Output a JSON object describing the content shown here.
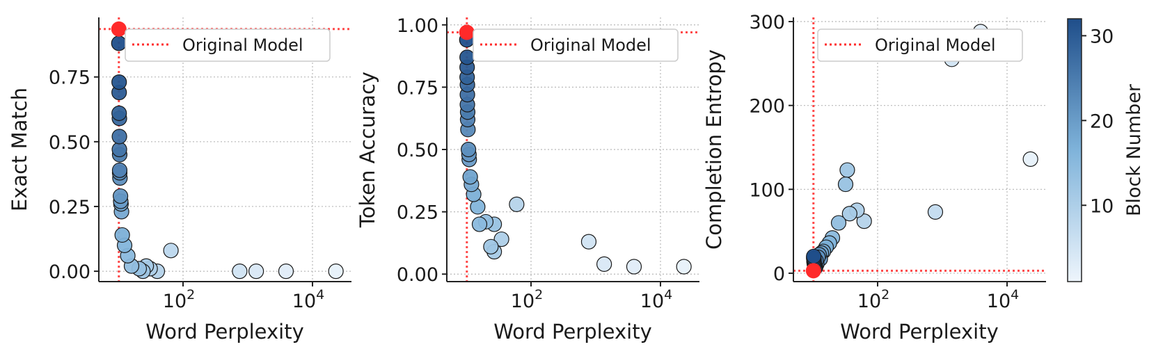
{
  "colors": {
    "reference": "#ff2a2a",
    "colormap_low": "#eef5fc",
    "colormap_high": "#1f4e8a",
    "grid": "#b8b8b8",
    "axis": "#222222"
  },
  "colorbar": {
    "label": "Block Number",
    "min": 1,
    "max": 32,
    "ticks": [
      {
        "value": 10,
        "label": "10"
      },
      {
        "value": 20,
        "label": "20"
      },
      {
        "value": 30,
        "label": "30"
      }
    ]
  },
  "chart_data": [
    {
      "type": "scatter",
      "xlabel": "Word Perplexity",
      "ylabel": "Exact Match",
      "xscale": "log",
      "xlim": [
        5,
        40000
      ],
      "ylim": [
        -0.04,
        0.98
      ],
      "x_ticks": [
        {
          "value": 100,
          "base": "10",
          "exp": "2"
        },
        {
          "value": 10000,
          "base": "10",
          "exp": "4"
        }
      ],
      "y_ticks": [
        {
          "value": 0.0,
          "label": "0.00"
        },
        {
          "value": 0.25,
          "label": "0.25"
        },
        {
          "value": 0.5,
          "label": "0.50"
        },
        {
          "value": 0.75,
          "label": "0.75"
        }
      ],
      "grid": true,
      "legend": {
        "label": "Original Model",
        "position": "top"
      },
      "reference": {
        "x": 10.2,
        "y": 0.935
      },
      "points": [
        {
          "x": 10.2,
          "y": 0.88,
          "block": 32
        },
        {
          "x": 10.3,
          "y": 0.73,
          "block": 31
        },
        {
          "x": 10.3,
          "y": 0.69,
          "block": 30
        },
        {
          "x": 10.3,
          "y": 0.61,
          "block": 29
        },
        {
          "x": 10.4,
          "y": 0.59,
          "block": 28
        },
        {
          "x": 10.4,
          "y": 0.52,
          "block": 27
        },
        {
          "x": 10.4,
          "y": 0.47,
          "block": 26
        },
        {
          "x": 10.5,
          "y": 0.45,
          "block": 25
        },
        {
          "x": 10.5,
          "y": 0.39,
          "block": 24
        },
        {
          "x": 10.5,
          "y": 0.38,
          "block": 23
        },
        {
          "x": 10.6,
          "y": 0.36,
          "block": 22
        },
        {
          "x": 10.8,
          "y": 0.29,
          "block": 21
        },
        {
          "x": 10.9,
          "y": 0.27,
          "block": 20
        },
        {
          "x": 11.0,
          "y": 0.26,
          "block": 19
        },
        {
          "x": 11.2,
          "y": 0.23,
          "block": 18
        },
        {
          "x": 11.5,
          "y": 0.14,
          "block": 17
        },
        {
          "x": 12.5,
          "y": 0.1,
          "block": 16
        },
        {
          "x": 14.0,
          "y": 0.06,
          "block": 15
        },
        {
          "x": 16.0,
          "y": 0.02,
          "block": 14
        },
        {
          "x": 21.0,
          "y": 0.01,
          "block": 13
        },
        {
          "x": 24.0,
          "y": 0.0,
          "block": 12
        },
        {
          "x": 27.0,
          "y": 0.02,
          "block": 11
        },
        {
          "x": 31.0,
          "y": 0.01,
          "block": 10
        },
        {
          "x": 40.0,
          "y": 0.0,
          "block": 9
        },
        {
          "x": 65.0,
          "y": 0.08,
          "block": 8
        },
        {
          "x": 750.0,
          "y": 0.0,
          "block": 5
        },
        {
          "x": 1350.0,
          "y": 0.0,
          "block": 4
        },
        {
          "x": 3900.0,
          "y": 0.0,
          "block": 3
        },
        {
          "x": 23000.0,
          "y": 0.0,
          "block": 2
        }
      ]
    },
    {
      "type": "scatter",
      "xlabel": "Word Perplexity",
      "ylabel": "Token Accuracy",
      "xscale": "log",
      "xlim": [
        5,
        40000
      ],
      "ylim": [
        -0.03,
        1.03
      ],
      "x_ticks": [
        {
          "value": 100,
          "base": "10",
          "exp": "2"
        },
        {
          "value": 10000,
          "base": "10",
          "exp": "4"
        }
      ],
      "y_ticks": [
        {
          "value": 0.0,
          "label": "0.00"
        },
        {
          "value": 0.25,
          "label": "0.25"
        },
        {
          "value": 0.5,
          "label": "0.50"
        },
        {
          "value": 0.75,
          "label": "0.75"
        },
        {
          "value": 1.0,
          "label": "1.00"
        }
      ],
      "grid": true,
      "legend": {
        "label": "Original Model",
        "position": "top"
      },
      "reference": {
        "x": 10.2,
        "y": 0.97
      },
      "points": [
        {
          "x": 10.2,
          "y": 0.94,
          "block": 32
        },
        {
          "x": 10.3,
          "y": 0.87,
          "block": 31
        },
        {
          "x": 10.3,
          "y": 0.83,
          "block": 30
        },
        {
          "x": 10.3,
          "y": 0.79,
          "block": 29
        },
        {
          "x": 10.4,
          "y": 0.76,
          "block": 28
        },
        {
          "x": 10.4,
          "y": 0.72,
          "block": 27
        },
        {
          "x": 10.4,
          "y": 0.68,
          "block": 26
        },
        {
          "x": 10.5,
          "y": 0.65,
          "block": 25
        },
        {
          "x": 10.5,
          "y": 0.62,
          "block": 24
        },
        {
          "x": 10.6,
          "y": 0.58,
          "block": 23
        },
        {
          "x": 10.8,
          "y": 0.5,
          "block": 22
        },
        {
          "x": 11.0,
          "y": 0.48,
          "block": 21
        },
        {
          "x": 11.1,
          "y": 0.46,
          "block": 20
        },
        {
          "x": 11.5,
          "y": 0.39,
          "block": 19
        },
        {
          "x": 12.0,
          "y": 0.36,
          "block": 18
        },
        {
          "x": 13.0,
          "y": 0.32,
          "block": 17
        },
        {
          "x": 15.0,
          "y": 0.27,
          "block": 16
        },
        {
          "x": 16.0,
          "y": 0.2,
          "block": 15
        },
        {
          "x": 20.0,
          "y": 0.21,
          "block": 14
        },
        {
          "x": 27.0,
          "y": 0.2,
          "block": 13
        },
        {
          "x": 24.0,
          "y": 0.11,
          "block": 12
        },
        {
          "x": 27.0,
          "y": 0.09,
          "block": 11
        },
        {
          "x": 35.0,
          "y": 0.14,
          "block": 10
        },
        {
          "x": 60.0,
          "y": 0.28,
          "block": 9
        },
        {
          "x": 780.0,
          "y": 0.13,
          "block": 5
        },
        {
          "x": 1350.0,
          "y": 0.04,
          "block": 4
        },
        {
          "x": 3900.0,
          "y": 0.03,
          "block": 3
        },
        {
          "x": 23000.0,
          "y": 0.03,
          "block": 2
        }
      ]
    },
    {
      "type": "scatter",
      "xlabel": "Word Perplexity",
      "ylabel": "Completion Entropy",
      "xscale": "log",
      "xlim": [
        5,
        40000
      ],
      "ylim": [
        -10,
        305
      ],
      "x_ticks": [
        {
          "value": 100,
          "base": "10",
          "exp": "2"
        },
        {
          "value": 10000,
          "base": "10",
          "exp": "4"
        }
      ],
      "y_ticks": [
        {
          "value": 0,
          "label": "0"
        },
        {
          "value": 100,
          "label": "100"
        },
        {
          "value": 200,
          "label": "200"
        },
        {
          "value": 300,
          "label": "300"
        }
      ],
      "grid": true,
      "legend": {
        "label": "Original Model",
        "position": "top"
      },
      "reference": {
        "x": 10.2,
        "y": 3
      },
      "points": [
        {
          "x": 10.3,
          "y": 20,
          "block": 32
        },
        {
          "x": 10.3,
          "y": 18,
          "block": 31
        },
        {
          "x": 10.4,
          "y": 16,
          "block": 30
        },
        {
          "x": 10.4,
          "y": 14,
          "block": 29
        },
        {
          "x": 10.5,
          "y": 12,
          "block": 28
        },
        {
          "x": 10.6,
          "y": 10,
          "block": 27
        },
        {
          "x": 10.8,
          "y": 8,
          "block": 26
        },
        {
          "x": 11.0,
          "y": 7,
          "block": 25
        },
        {
          "x": 11.2,
          "y": 15,
          "block": 24
        },
        {
          "x": 11.5,
          "y": 11,
          "block": 23
        },
        {
          "x": 12.0,
          "y": 19,
          "block": 22
        },
        {
          "x": 12.5,
          "y": 22,
          "block": 21
        },
        {
          "x": 13.0,
          "y": 17,
          "block": 20
        },
        {
          "x": 13.5,
          "y": 24,
          "block": 19
        },
        {
          "x": 14.5,
          "y": 26,
          "block": 18
        },
        {
          "x": 16.0,
          "y": 31,
          "block": 17
        },
        {
          "x": 18.0,
          "y": 36,
          "block": 16
        },
        {
          "x": 20.0,
          "y": 42,
          "block": 15
        },
        {
          "x": 25.0,
          "y": 60,
          "block": 14
        },
        {
          "x": 32.0,
          "y": 106,
          "block": 13
        },
        {
          "x": 34.0,
          "y": 123,
          "block": 12
        },
        {
          "x": 37.0,
          "y": 71,
          "block": 11
        },
        {
          "x": 48.0,
          "y": 75,
          "block": 10
        },
        {
          "x": 62.0,
          "y": 62,
          "block": 9
        },
        {
          "x": 780.0,
          "y": 73,
          "block": 7
        },
        {
          "x": 1400.0,
          "y": 255,
          "block": 5
        },
        {
          "x": 3900.0,
          "y": 288,
          "block": 3
        },
        {
          "x": 23000.0,
          "y": 136,
          "block": 2
        }
      ]
    }
  ]
}
